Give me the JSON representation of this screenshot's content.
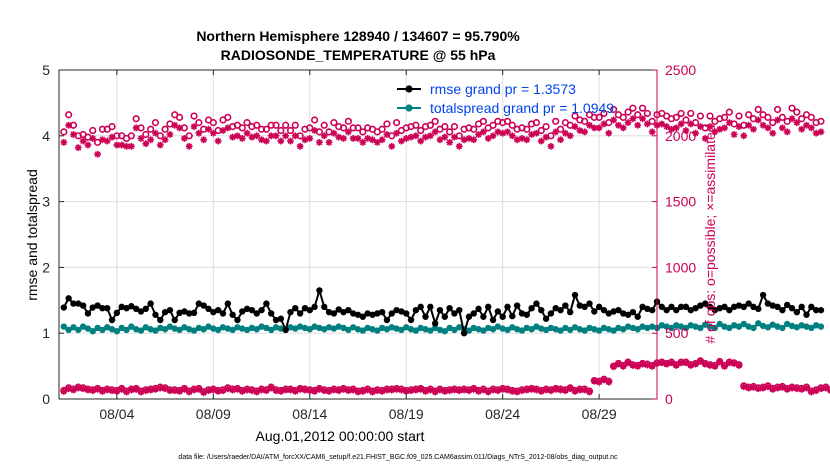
{
  "chart_data": {
    "type": "line",
    "title_line1": "Northern Hemisphere 128940 / 134607 = 95.790%",
    "title_line2": "RADIOSONDE_TEMPERATURE @ 55 hPa",
    "xlabel": "Aug.01,2012 00:00:00 start",
    "ylabel_left": "rmse and totalspread",
    "ylabel_right": "# of obs: o=possible; ×=assimilated",
    "footer": "data file: /Users/raeder/DAI/ATM_forcXX/CAM6_setup/f.e21.FHIST_BGC.f09_025.CAM6assim.011/Diags_NTrS_2012-08/obs_diag_output.nc",
    "xlim": [
      0.5,
      31.5
    ],
    "ylim_left": [
      0,
      5
    ],
    "ylim_right": [
      0,
      2500
    ],
    "x_ticks": [
      3.5,
      8.5,
      13.5,
      18.5,
      23.5,
      28.5
    ],
    "x_tick_labels": [
      "08/04",
      "08/09",
      "08/14",
      "08/19",
      "08/24",
      "08/29"
    ],
    "y_left_ticks": [
      0,
      1,
      2,
      3,
      4,
      5
    ],
    "y_right_ticks": [
      0,
      500,
      1000,
      1500,
      2000,
      2500
    ],
    "grid": true,
    "legend_placement": "top-right",
    "colors": {
      "rmse": "#000000",
      "spread": "#008080",
      "obs": "#cc0055",
      "legend_text": "#0044ee"
    },
    "x_start": 0.75,
    "x_step": 0.25,
    "series": [
      {
        "name": "rmse grand pr = 1.3573",
        "axis": "left",
        "values": [
          1.39,
          1.53,
          1.45,
          1.45,
          1.42,
          1.3,
          1.39,
          1.42,
          1.38,
          1.38,
          1.2,
          1.31,
          1.4,
          1.38,
          1.41,
          1.37,
          1.33,
          1.37,
          1.45,
          1.28,
          1.2,
          1.32,
          1.35,
          1.2,
          1.31,
          1.33,
          1.3,
          1.31,
          1.45,
          1.42,
          1.37,
          1.32,
          1.35,
          1.3,
          1.45,
          1.28,
          1.2,
          1.33,
          1.37,
          1.35,
          1.3,
          1.35,
          1.45,
          1.3,
          1.2,
          1.22,
          1.05,
          1.32,
          1.38,
          1.3,
          1.38,
          1.35,
          1.4,
          1.65,
          1.4,
          1.32,
          1.3,
          1.36,
          1.32,
          1.35,
          1.3,
          1.28,
          1.25,
          1.3,
          1.28,
          1.3,
          1.32,
          1.2,
          1.3,
          1.35,
          1.33,
          1.3,
          1.2,
          1.35,
          1.4,
          1.25,
          1.4,
          1.15,
          1.35,
          1.25,
          1.38,
          1.3,
          1.35,
          1.0,
          1.25,
          1.3,
          1.37,
          1.25,
          1.4,
          1.2,
          1.33,
          1.25,
          1.4,
          1.26,
          1.42,
          1.3,
          1.28,
          1.38,
          1.45,
          1.35,
          1.22,
          1.3,
          1.38,
          1.35,
          1.42,
          1.32,
          1.58,
          1.42,
          1.4,
          1.45,
          1.33,
          1.4,
          1.35,
          1.3,
          1.33,
          1.35,
          1.3,
          1.28,
          1.32,
          1.25,
          1.4,
          1.37,
          1.35,
          1.48,
          1.4,
          1.35,
          1.4,
          1.35,
          1.4,
          1.4,
          1.35,
          1.38,
          1.42,
          1.45,
          1.4,
          1.35,
          1.38,
          1.4,
          1.35,
          1.4,
          1.42,
          1.4,
          1.45,
          1.4,
          1.37,
          1.58,
          1.45,
          1.42,
          1.4,
          1.35,
          1.43,
          1.38,
          1.32,
          1.4,
          1.28,
          1.4,
          1.35,
          1.35
        ]
      },
      {
        "name": "totalspread grand pr = 1.0949",
        "axis": "left",
        "values": [
          1.1,
          1.05,
          1.09,
          1.05,
          1.1,
          1.07,
          1.03,
          1.08,
          1.05,
          1.09,
          1.06,
          1.03,
          1.08,
          1.05,
          1.1,
          1.06,
          1.04,
          1.09,
          1.06,
          1.04,
          1.08,
          1.06,
          1.1,
          1.07,
          1.05,
          1.09,
          1.06,
          1.04,
          1.08,
          1.06,
          1.1,
          1.07,
          1.05,
          1.09,
          1.07,
          1.05,
          1.09,
          1.07,
          1.05,
          1.08,
          1.06,
          1.1,
          1.08,
          1.05,
          1.09,
          1.07,
          1.05,
          1.09,
          1.07,
          1.1,
          1.08,
          1.06,
          1.1,
          1.08,
          1.06,
          1.09,
          1.07,
          1.1,
          1.08,
          1.05,
          1.09,
          1.06,
          1.04,
          1.08,
          1.06,
          1.04,
          1.08,
          1.06,
          1.09,
          1.07,
          1.05,
          1.09,
          1.06,
          1.04,
          1.08,
          1.06,
          1.04,
          1.08,
          1.05,
          1.03,
          1.08,
          1.05,
          1.09,
          1.06,
          1.04,
          1.08,
          1.06,
          1.04,
          1.08,
          1.06,
          1.1,
          1.07,
          1.05,
          1.09,
          1.06,
          1.04,
          1.08,
          1.06,
          1.1,
          1.07,
          1.05,
          1.08,
          1.06,
          1.04,
          1.08,
          1.05,
          1.09,
          1.06,
          1.04,
          1.08,
          1.06,
          1.04,
          1.08,
          1.06,
          1.04,
          1.08,
          1.06,
          1.1,
          1.08,
          1.06,
          1.1,
          1.08,
          1.1,
          1.08,
          1.12,
          1.1,
          1.08,
          1.12,
          1.1,
          1.08,
          1.12,
          1.1,
          1.08,
          1.13,
          1.1,
          1.08,
          1.14,
          1.1,
          1.08,
          1.12,
          1.1,
          1.14,
          1.1,
          1.08,
          1.15,
          1.11,
          1.09,
          1.13,
          1.1,
          1.08,
          1.14,
          1.11,
          1.09,
          1.12,
          1.1,
          1.08,
          1.12,
          1.1
        ]
      },
      {
        "name": "possible",
        "axis": "right",
        "marker": "circle",
        "values": [
          2030,
          2160,
          2080,
          2000,
          2010,
          1990,
          2040,
          1950,
          2050,
          2050,
          2070,
          2000,
          2000,
          1980,
          2000,
          2130,
          2060,
          2010,
          2050,
          2100,
          2000,
          2050,
          2090,
          2160,
          2140,
          2060,
          2000,
          2150,
          2100,
          2050,
          2120,
          2100,
          2040,
          2120,
          2140,
          2070,
          2080,
          2060,
          2100,
          2070,
          2080,
          2050,
          2050,
          2080,
          2080,
          2040,
          2080,
          2040,
          2080,
          2000,
          2050,
          2060,
          2120,
          2030,
          2080,
          2030,
          2100,
          2070,
          2060,
          2110,
          2060,
          2060,
          2030,
          2060,
          2050,
          2030,
          2050,
          2090,
          2000,
          2100,
          2040,
          2060,
          2070,
          2080,
          2040,
          2070,
          2080,
          2110,
          2050,
          2070,
          2030,
          2070,
          2000,
          2050,
          2060,
          2050,
          2090,
          2110,
          2060,
          2080,
          2110,
          2100,
          2110,
          2080,
          2050,
          2060,
          2050,
          2090,
          2100,
          2040,
          2070,
          2000,
          2110,
          2050,
          2100,
          2080,
          2150,
          2120,
          2110,
          2160,
          2140,
          2140,
          2170,
          2100,
          2200,
          2160,
          2140,
          2180,
          2210,
          2160,
          2210,
          2170,
          2110,
          2160,
          2170,
          2150,
          2130,
          2140,
          2170,
          2120,
          2170,
          2100,
          2150,
          2060,
          2150,
          2110,
          2130,
          2140,
          2180,
          2090,
          2150,
          2080,
          2160,
          2130,
          2200,
          2160,
          2140,
          2100,
          2200,
          2140,
          2110,
          2210,
          2180,
          2130,
          2160,
          2140,
          2100,
          2110
        ]
      },
      {
        "name": "assimilated",
        "axis": "right",
        "marker": "asterisk",
        "values": [
          1950,
          2080,
          2010,
          1910,
          1960,
          1930,
          1980,
          1860,
          1970,
          1960,
          1990,
          1930,
          1930,
          1920,
          1920,
          2060,
          1980,
          1940,
          1970,
          2020,
          1930,
          1970,
          2010,
          2080,
          2060,
          1980,
          1920,
          2070,
          2020,
          1970,
          2050,
          2020,
          1960,
          2040,
          2060,
          1990,
          2000,
          1980,
          2020,
          1990,
          2000,
          1970,
          1960,
          2000,
          2000,
          1960,
          2000,
          1960,
          2000,
          1920,
          1970,
          1980,
          2040,
          1950,
          2000,
          1950,
          2020,
          1990,
          1980,
          2030,
          1980,
          1980,
          1950,
          1980,
          1970,
          1950,
          1970,
          2010,
          1920,
          2020,
          1960,
          1980,
          1990,
          2000,
          1960,
          1990,
          2000,
          2030,
          1970,
          1990,
          1950,
          1990,
          1920,
          1970,
          1980,
          1970,
          2010,
          2030,
          1980,
          2000,
          2030,
          2020,
          2030,
          2000,
          1970,
          1980,
          1970,
          2010,
          2020,
          1960,
          1990,
          1920,
          2030,
          1970,
          2020,
          2000,
          2070,
          2040,
          2030,
          2080,
          2060,
          2060,
          2090,
          2020,
          2120,
          2080,
          2060,
          2100,
          2130,
          2080,
          2130,
          2090,
          2030,
          2080,
          2090,
          2070,
          2050,
          2060,
          2090,
          2040,
          2090,
          2020,
          2070,
          1980,
          2070,
          2030,
          2050,
          2060,
          2100,
          2010,
          2070,
          2000,
          2080,
          2050,
          2120,
          2080,
          2060,
          2020,
          2120,
          2060,
          2030,
          2130,
          2100,
          2050,
          2080,
          2060,
          2020,
          2030
        ]
      },
      {
        "name": "possible",
        "axis": "right",
        "marker": "circle",
        "values": [
          65,
          85,
          75,
          90,
          85,
          75,
          70,
          80,
          65,
          75,
          70,
          65,
          80,
          60,
          75,
          80,
          60,
          70,
          75,
          80,
          90,
          85,
          70,
          70,
          65,
          80,
          60,
          75,
          80,
          55,
          70,
          75,
          65,
          70,
          85,
          75,
          80,
          65,
          75,
          70,
          60,
          75,
          70,
          90,
          70,
          65,
          75,
          75,
          65,
          80,
          75,
          70,
          65,
          80,
          70,
          65,
          75,
          70,
          80,
          70,
          75,
          60,
          65,
          75,
          60,
          70,
          65,
          75,
          75,
          80,
          75,
          65,
          70,
          75,
          80,
          65,
          75,
          60,
          75,
          65,
          70,
          75,
          70,
          75,
          70,
          80,
          65,
          75,
          60,
          75,
          70,
          80,
          75,
          65,
          60,
          70,
          75,
          80,
          75,
          65,
          75,
          70,
          80,
          75,
          70,
          85,
          65,
          75,
          75,
          60,
          140,
          135,
          150,
          135,
          250,
          270,
          255,
          280,
          260,
          255,
          270,
          265,
          255,
          275,
          280,
          270,
          280,
          260,
          280,
          280,
          260,
          270,
          290,
          270,
          260,
          255,
          285,
          255,
          280,
          275,
          260,
          100,
          90,
          95,
          85,
          90,
          100,
          80,
          90,
          95,
          80,
          90,
          85,
          80,
          90,
          60,
          70,
          85,
          90,
          70,
          40,
          10
        ]
      },
      {
        "name": "assimilated",
        "axis": "right",
        "marker": "asterisk",
        "values": [
          58,
          78,
          68,
          83,
          78,
          68,
          63,
          73,
          58,
          68,
          63,
          58,
          73,
          53,
          68,
          73,
          53,
          63,
          68,
          73,
          83,
          78,
          63,
          63,
          58,
          73,
          53,
          68,
          73,
          48,
          63,
          68,
          58,
          63,
          78,
          68,
          73,
          58,
          68,
          63,
          53,
          68,
          63,
          83,
          63,
          58,
          68,
          68,
          58,
          73,
          68,
          63,
          58,
          73,
          63,
          58,
          68,
          63,
          73,
          63,
          68,
          53,
          58,
          68,
          53,
          63,
          58,
          68,
          68,
          73,
          68,
          58,
          63,
          68,
          73,
          58,
          68,
          53,
          68,
          58,
          63,
          68,
          63,
          68,
          63,
          73,
          58,
          68,
          53,
          68,
          63,
          73,
          68,
          58,
          53,
          63,
          68,
          73,
          68,
          58,
          68,
          63,
          73,
          68,
          63,
          78,
          58,
          68,
          68,
          53,
          135,
          128,
          145,
          128,
          245,
          265,
          248,
          275,
          255,
          248,
          265,
          258,
          248,
          270,
          275,
          265,
          275,
          255,
          275,
          275,
          255,
          265,
          285,
          265,
          255,
          248,
          280,
          248,
          275,
          270,
          255,
          93,
          83,
          88,
          78,
          83,
          93,
          73,
          83,
          88,
          73,
          83,
          78,
          73,
          83,
          53,
          63,
          78,
          83,
          63,
          33,
          3
        ]
      }
    ]
  }
}
